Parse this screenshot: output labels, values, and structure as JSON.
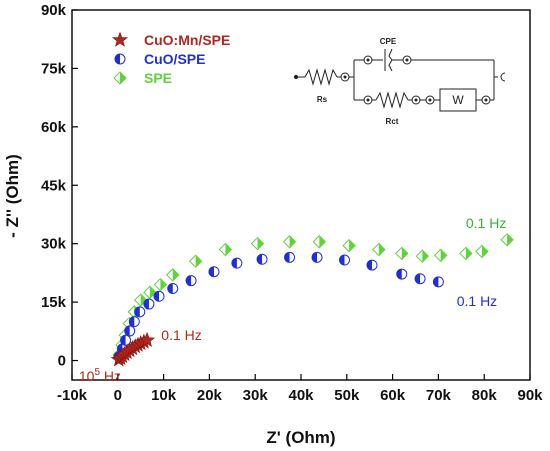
{
  "chart_data": {
    "type": "scatter",
    "xlabel": "Z' (Ohm)",
    "ylabel": "- Z'' (Ohm)",
    "xlim": [
      -10000,
      90000
    ],
    "ylim": [
      -5000,
      90000
    ],
    "x_ticks": [
      "-10k",
      "0",
      "10k",
      "20k",
      "30k",
      "40k",
      "50k",
      "60k",
      "70k",
      "80k",
      "90k"
    ],
    "y_ticks": [
      "0",
      "15k",
      "30k",
      "45k",
      "60k",
      "75k",
      "90k"
    ],
    "legend_position": "top-left",
    "series": [
      {
        "name": "CuO:Mn/SPE",
        "marker": "star",
        "color": "#b3261e",
        "points": [
          [
            200,
            200
          ],
          [
            600,
            600
          ],
          [
            1000,
            1100
          ],
          [
            1500,
            1600
          ],
          [
            2000,
            2100
          ],
          [
            2600,
            2600
          ],
          [
            3200,
            3100
          ],
          [
            3800,
            3600
          ],
          [
            4400,
            4000
          ],
          [
            5000,
            4400
          ],
          [
            5700,
            4800
          ],
          [
            6400,
            5200
          ]
        ]
      },
      {
        "name": "CuO/SPE",
        "marker": "half-circle",
        "color": "#1f2fd6",
        "points": [
          [
            300,
            1000
          ],
          [
            1000,
            3000
          ],
          [
            1700,
            5200
          ],
          [
            2600,
            7600
          ],
          [
            3600,
            10000
          ],
          [
            4800,
            12500
          ],
          [
            6800,
            14500
          ],
          [
            9000,
            16500
          ],
          [
            12000,
            18500
          ],
          [
            16000,
            20500
          ],
          [
            21000,
            22800
          ],
          [
            26000,
            25000
          ],
          [
            31500,
            26000
          ],
          [
            37500,
            26500
          ],
          [
            43500,
            26500
          ],
          [
            49500,
            25800
          ],
          [
            55500,
            24500
          ],
          [
            62000,
            22200
          ],
          [
            66000,
            21000
          ],
          [
            70000,
            20200
          ]
        ]
      },
      {
        "name": "SPE",
        "marker": "diamond",
        "color": "#5fd43a",
        "points": [
          [
            300,
            1500
          ],
          [
            900,
            4000
          ],
          [
            1600,
            6500
          ],
          [
            2500,
            9500
          ],
          [
            3600,
            12500
          ],
          [
            5000,
            15500
          ],
          [
            7000,
            17500
          ],
          [
            9300,
            19500
          ],
          [
            12000,
            22000
          ],
          [
            17000,
            25500
          ],
          [
            23500,
            28500
          ],
          [
            30500,
            30000
          ],
          [
            37500,
            30500
          ],
          [
            44000,
            30500
          ],
          [
            50500,
            29500
          ],
          [
            57000,
            28500
          ],
          [
            62000,
            27500
          ],
          [
            66500,
            26800
          ],
          [
            70500,
            27000
          ],
          [
            76000,
            27500
          ],
          [
            79500,
            28000
          ],
          [
            85000,
            31000
          ]
        ]
      }
    ],
    "annotations": [
      {
        "text": "0.1 Hz",
        "x": 9500,
        "y": 5300,
        "color": "#b3261e"
      },
      {
        "text": "10",
        "sup": "5",
        "suffix": " Hz",
        "x": -8500,
        "y": -5200,
        "color": "#b3261e"
      },
      {
        "text": "0.1 Hz",
        "x": 74000,
        "y": 14000,
        "color": "#1f2fd6"
      },
      {
        "text": "0.1 Hz",
        "x": 76000,
        "y": 34000,
        "color": "#2fb52f"
      }
    ],
    "circuit": {
      "labels": {
        "cpe": "CPE",
        "rs": "Rs",
        "rct": "Rct",
        "w": "W"
      }
    }
  }
}
